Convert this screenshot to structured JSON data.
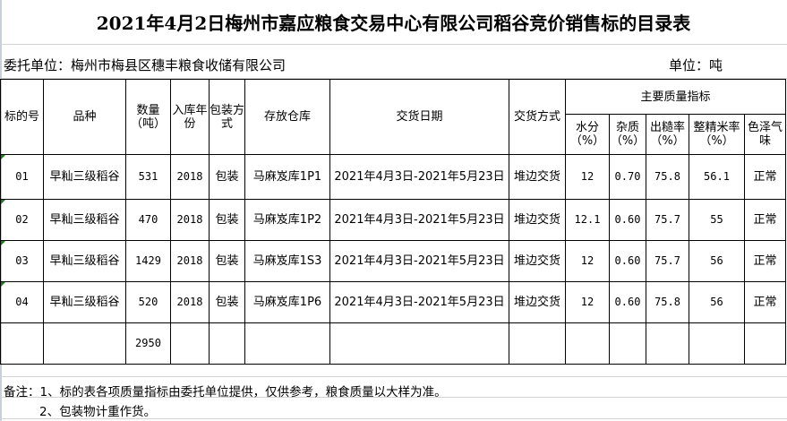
{
  "title": "2021年4月2日梅州市嘉应粮食交易中心有限公司稻谷竞价销售标的目录表",
  "consignor": "委托单位：梅州市梅县区穗丰粮食收储有限公司",
  "unit": "单位：吨",
  "headers": {
    "lot": "标的号",
    "variety": "品种",
    "qty": "数量（吨）",
    "year": "入库年份",
    "pack": "包装方式",
    "warehouse": "存放仓库",
    "date": "交货日期",
    "method": "交货方式",
    "quality": "主要质量指标",
    "moisture": "水分（%）",
    "impurity": "杂质（%）",
    "husk": "出糙率（%）",
    "whole": "整精米率（%）",
    "color": "色泽气味"
  },
  "rows": [
    {
      "lot": "01",
      "variety": "早籼三级稻谷",
      "qty": "531",
      "year": "2018",
      "pack": "包装",
      "warehouse": "马麻岌库1P1",
      "date": "2021年4月3日-2021年5月23日",
      "method": "堆边交货",
      "moisture": "12",
      "impurity": "0.70",
      "husk": "75.8",
      "whole": "56.1",
      "color": "正常"
    },
    {
      "lot": "02",
      "variety": "早籼三级稻谷",
      "qty": "470",
      "year": "2018",
      "pack": "包装",
      "warehouse": "马麻岌库1P2",
      "date": "2021年4月3日-2021年5月23日",
      "method": "堆边交货",
      "moisture": "12.1",
      "impurity": "0.60",
      "husk": "75.7",
      "whole": "55",
      "color": "正常"
    },
    {
      "lot": "03",
      "variety": "早籼三级稻谷",
      "qty": "1429",
      "year": "2018",
      "pack": "包装",
      "warehouse": "马麻岌库1S3",
      "date": "2021年4月3日-2021年5月23日",
      "method": "堆边交货",
      "moisture": "12",
      "impurity": "0.60",
      "husk": "75.7",
      "whole": "56",
      "color": "正常"
    },
    {
      "lot": "04",
      "variety": "早籼三级稻谷",
      "qty": "520",
      "year": "2018",
      "pack": "包装",
      "warehouse": "马麻岌库1P6",
      "date": "2021年4月3日-2021年5月23日",
      "method": "堆边交货",
      "moisture": "12",
      "impurity": "0.60",
      "husk": "75.8",
      "whole": "56",
      "color": "正常"
    }
  ],
  "total": "2950",
  "notes": [
    "备注：1、标的表各项质量指标由委托单位提供，仅供参考，粮食质量以大样为准。",
    "2、包装物计重作货。"
  ]
}
